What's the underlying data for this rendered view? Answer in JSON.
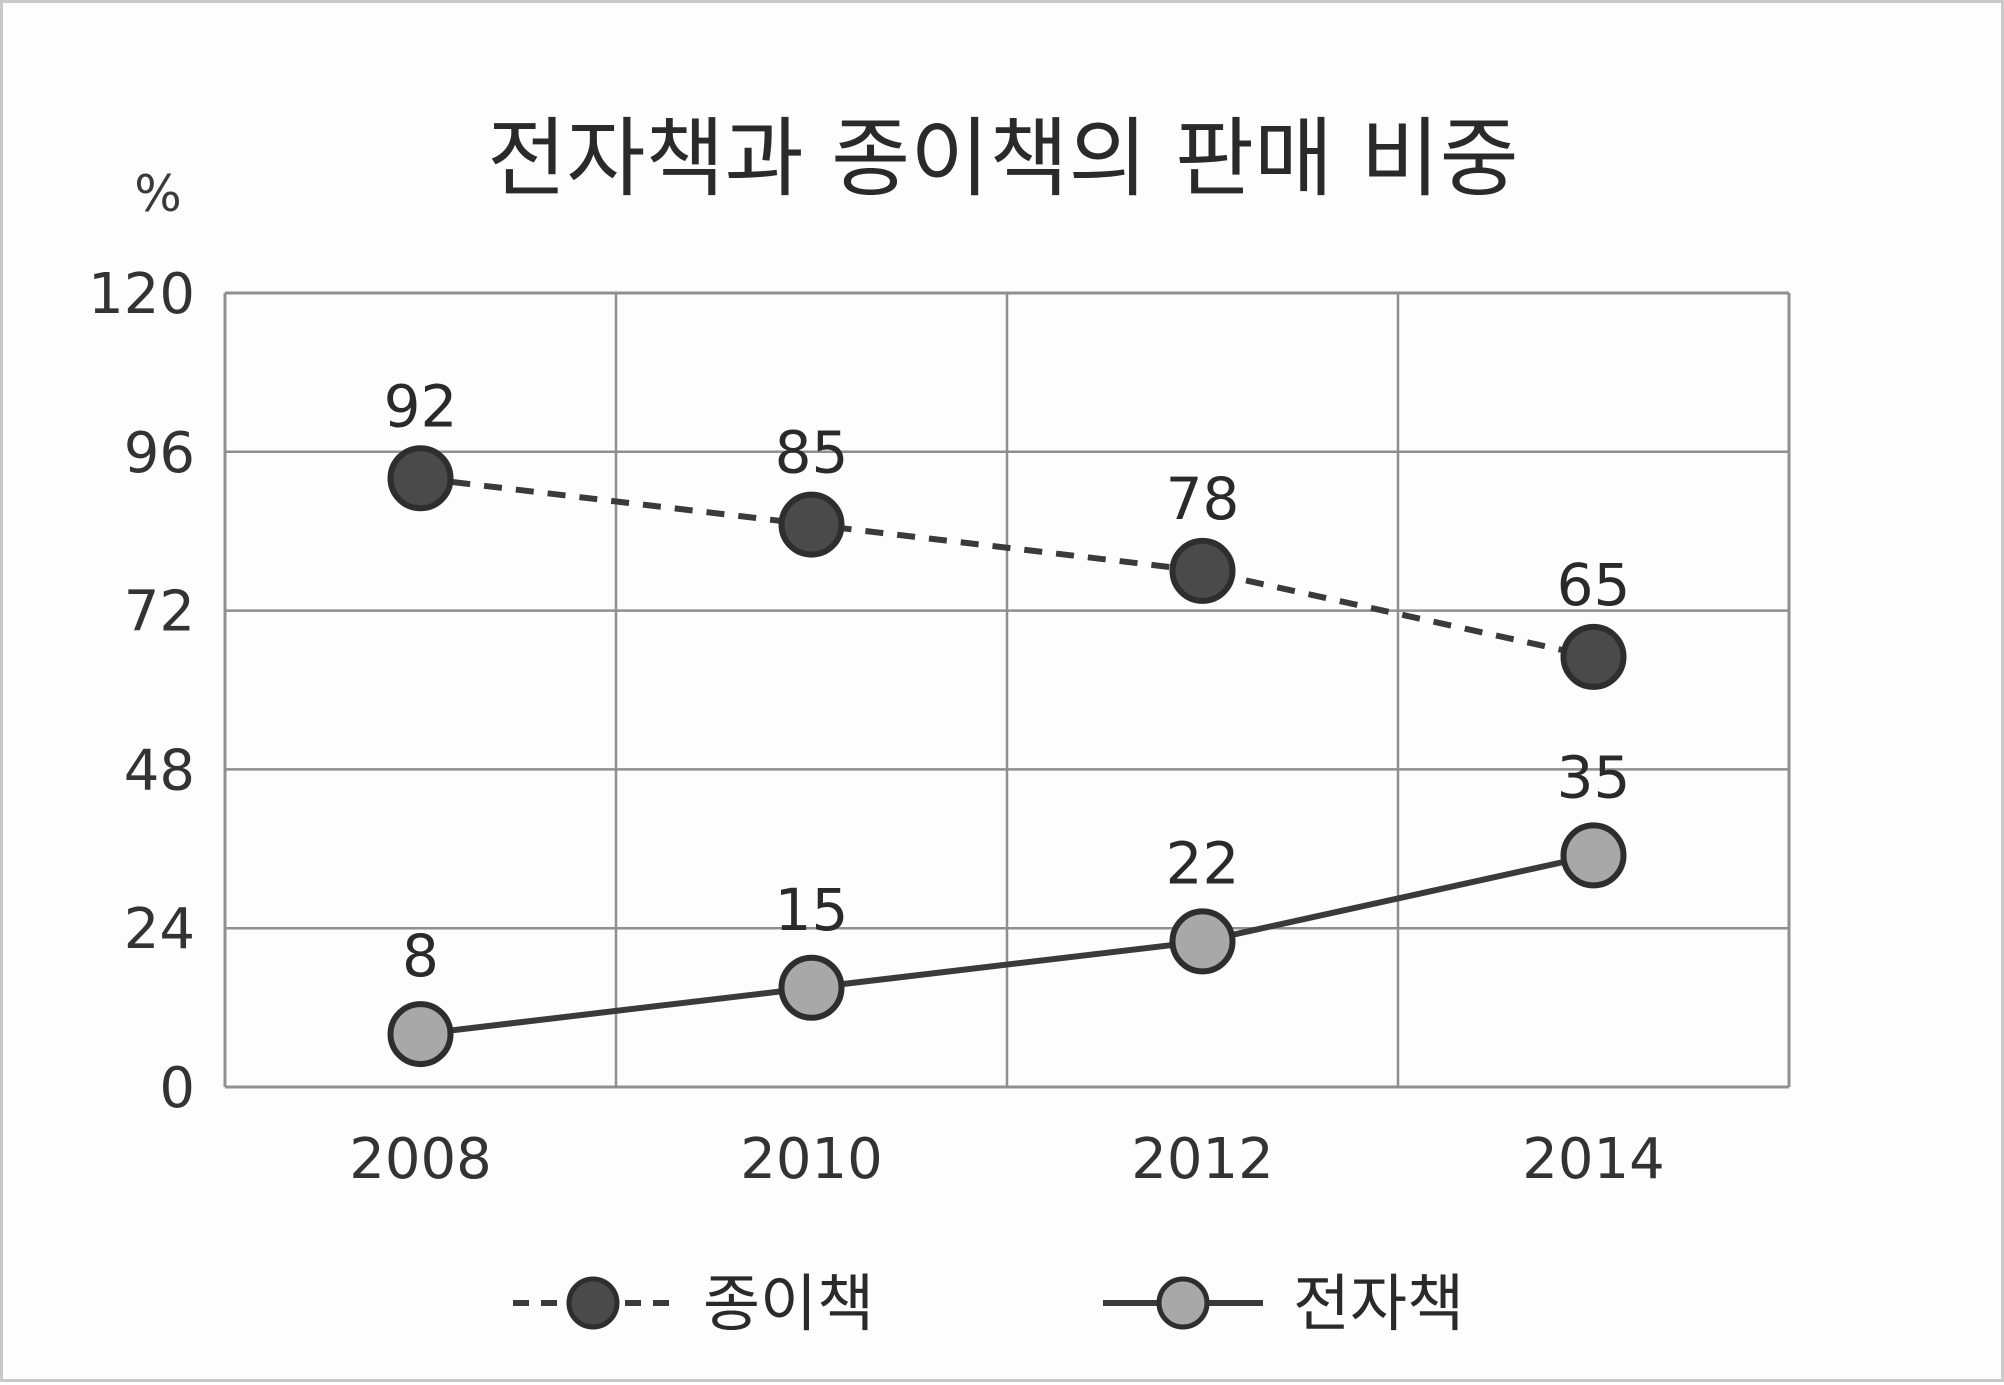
{
  "chart_data": {
    "type": "line",
    "title": "전자책과 종이책의 판매 비중",
    "unit": "%",
    "x": [
      "2008",
      "2010",
      "2012",
      "2014"
    ],
    "ylim": [
      0,
      120
    ],
    "yticks": [
      "0",
      "24",
      "48",
      "72",
      "96",
      "120"
    ],
    "grid": true,
    "legend_position": "bottom",
    "series": [
      {
        "name": "종이책",
        "values": [
          92,
          85,
          78,
          65
        ],
        "line_style": "dashed",
        "marker_color": "#4a4a4a"
      },
      {
        "name": "전자책",
        "values": [
          8,
          15,
          22,
          35
        ],
        "line_style": "solid",
        "marker_color": "#a8a8a8"
      }
    ]
  },
  "colors": {
    "line": "#3a3a3a",
    "grid": "#8f8f8f",
    "marker_dark": "#4a4a4a",
    "marker_light": "#a8a8a8"
  }
}
